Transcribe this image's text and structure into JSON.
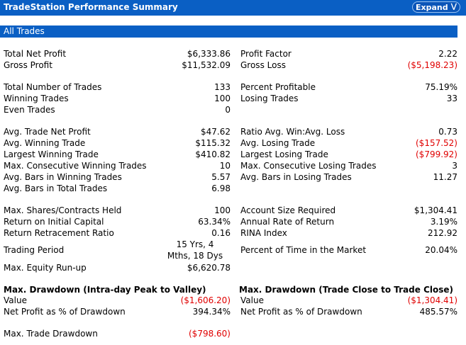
{
  "header": {
    "title": "TradeStation Performance Summary",
    "expand_label": "Expand"
  },
  "section": {
    "title": "All Trades"
  },
  "rows": {
    "total_net_profit": {
      "label": "Total Net Profit",
      "value": "$6,333.86"
    },
    "profit_factor": {
      "label": "Profit Factor",
      "value": "2.22"
    },
    "gross_profit": {
      "label": "Gross Profit",
      "value": "$11,532.09"
    },
    "gross_loss": {
      "label": "Gross Loss",
      "value": "($5,198.23)"
    },
    "total_trades": {
      "label": "Total Number of Trades",
      "value": "133"
    },
    "percent_profitable": {
      "label": "Percent Profitable",
      "value": "75.19%"
    },
    "winning_trades": {
      "label": "Winning Trades",
      "value": "100"
    },
    "losing_trades": {
      "label": "Losing Trades",
      "value": "33"
    },
    "even_trades": {
      "label": "Even Trades",
      "value": "0"
    },
    "avg_trade_net_profit": {
      "label": "Avg. Trade Net Profit",
      "value": "$47.62"
    },
    "ratio_avg_win_loss": {
      "label": "Ratio Avg. Win:Avg. Loss",
      "value": "0.73"
    },
    "avg_winning_trade": {
      "label": "Avg. Winning Trade",
      "value": "$115.32"
    },
    "avg_losing_trade": {
      "label": "Avg. Losing Trade",
      "value": "($157.52)"
    },
    "largest_winning_trade": {
      "label": "Largest Winning Trade",
      "value": "$410.82"
    },
    "largest_losing_trade": {
      "label": "Largest Losing Trade",
      "value": "($799.92)"
    },
    "max_consec_winning": {
      "label": "Max. Consecutive Winning Trades",
      "value": "10"
    },
    "max_consec_losing": {
      "label": "Max. Consecutive Losing Trades",
      "value": "3"
    },
    "avg_bars_winning": {
      "label": "Avg. Bars in Winning Trades",
      "value": "5.57"
    },
    "avg_bars_losing": {
      "label": "Avg. Bars in Losing Trades",
      "value": "11.27"
    },
    "avg_bars_total": {
      "label": "Avg. Bars in Total Trades",
      "value": "6.98"
    },
    "max_shares_held": {
      "label": "Max. Shares/Contracts Held",
      "value": "100"
    },
    "account_size_required": {
      "label": "Account Size Required",
      "value": "$1,304.41"
    },
    "return_initial_capital": {
      "label": "Return on Initial Capital",
      "value": "63.34%"
    },
    "annual_rate_return": {
      "label": "Annual Rate of Return",
      "value": "3.19%"
    },
    "return_retracement": {
      "label": "Return Retracement Ratio",
      "value": "0.16"
    },
    "rina_index": {
      "label": "RINA Index",
      "value": "212.92"
    },
    "trading_period": {
      "label": "Trading Period",
      "value_line1": "15 Yrs, 4",
      "value_line2": "Mths, 18 Dys"
    },
    "percent_time_market": {
      "label": "Percent of Time in the Market",
      "value": "20.04%"
    },
    "max_equity_runup": {
      "label": "Max. Equity Run-up",
      "value": "$6,620.78"
    }
  },
  "drawdown_intraday": {
    "title": "Max. Drawdown (Intra-day Peak to Valley)",
    "value_label": "Value",
    "value": "($1,606.20)",
    "net_profit_pct_label": "Net Profit as % of Drawdown",
    "net_profit_pct": "394.34%"
  },
  "drawdown_close": {
    "title": "Max. Drawdown (Trade Close to Trade Close)",
    "value_label": "Value",
    "value": "($1,304.41)",
    "net_profit_pct_label": "Net Profit as % of Drawdown",
    "net_profit_pct": "485.57%"
  },
  "max_trade_drawdown": {
    "label": "Max. Trade Drawdown",
    "value": "($798.60)"
  },
  "colors": {
    "header_blue": "#0a5fc4",
    "negative_red": "#e00000"
  }
}
